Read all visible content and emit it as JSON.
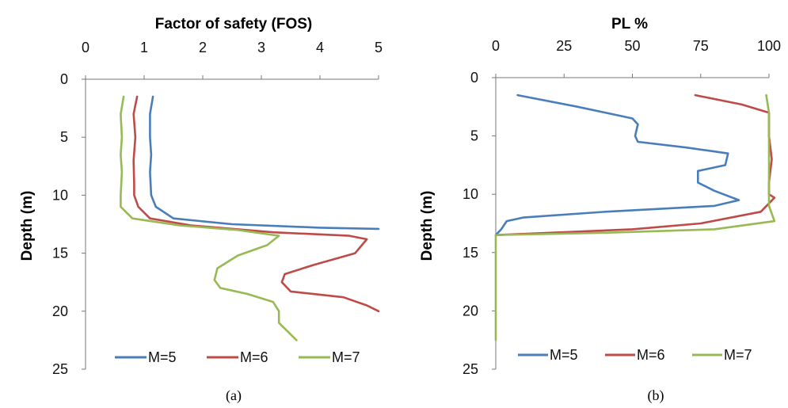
{
  "chart_data": [
    {
      "type": "line",
      "title": "Factor of safety (FOS)",
      "ylabel": "Depth (m)",
      "caption": "(a)",
      "xlim": [
        0,
        5
      ],
      "ylim": [
        0,
        25
      ],
      "x_axis_position": "top",
      "y_inverted": true,
      "x_ticks": [
        "0",
        "1",
        "2",
        "3",
        "4",
        "5"
      ],
      "y_ticks": [
        "0",
        "5",
        "10",
        "15",
        "20",
        "25"
      ],
      "grid": false,
      "legend_position": "bottom",
      "series": [
        {
          "name": "M=5",
          "color": "#4a7ebb",
          "points": [
            [
              1.15,
              1.5
            ],
            [
              1.1,
              3
            ],
            [
              1.1,
              5
            ],
            [
              1.12,
              6.5
            ],
            [
              1.1,
              8
            ],
            [
              1.12,
              10
            ],
            [
              1.2,
              11
            ],
            [
              1.5,
              12
            ],
            [
              2.5,
              12.5
            ],
            [
              4,
              12.8
            ],
            [
              5,
              12.9
            ]
          ]
        },
        {
          "name": "M=6",
          "color": "#be4b48",
          "points": [
            [
              0.88,
              1.5
            ],
            [
              0.82,
              3
            ],
            [
              0.85,
              5
            ],
            [
              0.82,
              7
            ],
            [
              0.83,
              9
            ],
            [
              0.83,
              10
            ],
            [
              0.9,
              11
            ],
            [
              1.1,
              12
            ],
            [
              1.8,
              12.6
            ],
            [
              3.2,
              13.2
            ],
            [
              4.5,
              13.5
            ],
            [
              4.8,
              13.8
            ],
            [
              4.6,
              15
            ],
            [
              3.9,
              16
            ],
            [
              3.4,
              16.8
            ],
            [
              3.35,
              17.5
            ],
            [
              3.5,
              18.3
            ],
            [
              4.4,
              18.8
            ],
            [
              4.8,
              19.5
            ],
            [
              5,
              20
            ]
          ]
        },
        {
          "name": "M=7",
          "color": "#98b954",
          "points": [
            [
              0.65,
              1.5
            ],
            [
              0.6,
              3
            ],
            [
              0.62,
              5
            ],
            [
              0.6,
              6.5
            ],
            [
              0.62,
              8
            ],
            [
              0.6,
              10
            ],
            [
              0.6,
              11
            ],
            [
              0.8,
              12
            ],
            [
              1.6,
              12.6
            ],
            [
              2.6,
              13
            ],
            [
              3.3,
              13.5
            ],
            [
              3.1,
              14.3
            ],
            [
              2.6,
              15.2
            ],
            [
              2.25,
              16.3
            ],
            [
              2.2,
              17.3
            ],
            [
              2.3,
              18
            ],
            [
              2.75,
              18.5
            ],
            [
              3.2,
              19.2
            ],
            [
              3.3,
              20
            ],
            [
              3.3,
              21
            ],
            [
              3.6,
              22.5
            ]
          ]
        }
      ]
    },
    {
      "type": "line",
      "title": "PL %",
      "ylabel": "Depth (m)",
      "caption": "(b)",
      "xlim": [
        0,
        100
      ],
      "ylim": [
        0,
        25
      ],
      "x_axis_position": "top",
      "y_inverted": true,
      "x_ticks": [
        "0",
        "25",
        "50",
        "75",
        "100"
      ],
      "y_ticks": [
        "0",
        "5",
        "10",
        "15",
        "20",
        "25"
      ],
      "grid": false,
      "legend_position": "bottom",
      "series": [
        {
          "name": "M=5",
          "color": "#4a7ebb",
          "points": [
            [
              8,
              1.5
            ],
            [
              30,
              2.5
            ],
            [
              50,
              3.5
            ],
            [
              52,
              4
            ],
            [
              51,
              5
            ],
            [
              52,
              5.5
            ],
            [
              70,
              6
            ],
            [
              85,
              6.5
            ],
            [
              84,
              7.5
            ],
            [
              74,
              8
            ],
            [
              74,
              9
            ],
            [
              80,
              9.7
            ],
            [
              89,
              10.5
            ],
            [
              80,
              11
            ],
            [
              40,
              11.5
            ],
            [
              10,
              12
            ],
            [
              4,
              12.3
            ],
            [
              2,
              13
            ],
            [
              0,
              13.5
            ]
          ]
        },
        {
          "name": "M=6",
          "color": "#be4b48",
          "points": [
            [
              73,
              1.5
            ],
            [
              90,
              2.3
            ],
            [
              100,
              3
            ],
            [
              100,
              5
            ],
            [
              101,
              7
            ],
            [
              100,
              9
            ],
            [
              100,
              10
            ],
            [
              102,
              10.3
            ],
            [
              97,
              11.5
            ],
            [
              75,
              12.5
            ],
            [
              50,
              13
            ],
            [
              20,
              13.3
            ],
            [
              0,
              13.5
            ]
          ]
        },
        {
          "name": "M=7",
          "color": "#98b954",
          "points": [
            [
              99,
              1.5
            ],
            [
              100,
              3
            ],
            [
              100,
              5
            ],
            [
              100,
              7
            ],
            [
              100,
              9
            ],
            [
              100,
              11
            ],
            [
              102,
              12.3
            ],
            [
              80,
              13
            ],
            [
              40,
              13.3
            ],
            [
              0,
              13.5
            ],
            [
              0,
              15
            ],
            [
              0,
              18
            ],
            [
              0,
              20
            ],
            [
              0,
              22.5
            ]
          ]
        }
      ]
    }
  ]
}
